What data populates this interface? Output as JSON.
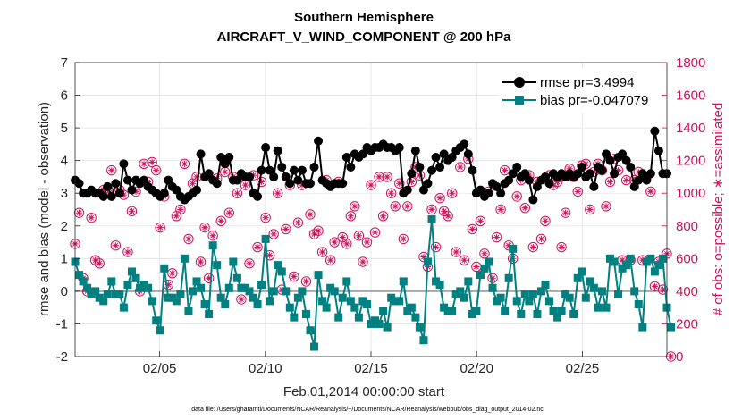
{
  "chart_data": {
    "type": "line",
    "title": "Southern Hemisphere",
    "subtitle": "AIRCRAFT_V_WIND_COMPONENT @ 200 hPa",
    "xlabel": "Feb.01,2014 00:00:00 start",
    "ylabel": "rmse and bias (model - observation)",
    "y2label": "# of obs: o=possible; ∗=assimilated",
    "footnote": "data file: /Users/gharamti/Documents/NCAR/Reanalysis/~/Documents/NCAR/Reanalysis/webpub/obs_diag_output_2014-02.nc",
    "x_ticks": [
      "02/05",
      "02/10",
      "02/15",
      "02/20",
      "02/25"
    ],
    "x_tick_values": [
      5,
      10,
      15,
      20,
      25
    ],
    "xlim": [
      1,
      29
    ],
    "ylim": [
      -2,
      7
    ],
    "y_ticks": [
      "-2",
      "-1",
      "0",
      "1",
      "2",
      "3",
      "4",
      "5",
      "6",
      "7"
    ],
    "y2lim": [
      0,
      1800
    ],
    "y2_ticks": [
      "0",
      "200",
      "400",
      "600",
      "800",
      "1000",
      "1200",
      "1400",
      "1600",
      "1800"
    ],
    "grid": true,
    "legend_position": "top-right",
    "colors": {
      "rmse": "#000000",
      "bias": "#008080",
      "obs": "#d0105a",
      "zero_line": "#a8a8a8"
    },
    "series": [
      {
        "name": "rmse pr=3.4994",
        "axis": "left",
        "values": [
          3.4,
          3.3,
          3.0,
          3.0,
          3.1,
          3.0,
          3.0,
          2.9,
          3.2,
          2.9,
          3.3,
          3.0,
          3.9,
          3.4,
          3.1,
          3.4,
          3.3,
          3.4,
          3.2,
          3.1,
          3.0,
          2.9,
          3.0,
          3.4,
          3.2,
          3.1,
          2.9,
          2.8,
          2.9,
          3.0,
          3.1,
          4.2,
          3.5,
          3.6,
          3.4,
          3.3,
          4.1,
          3.9,
          4.1,
          3.4,
          3.4,
          3.6,
          3.5,
          3.5,
          3.0,
          2.9,
          3.7,
          4.4,
          3.7,
          3.5,
          4.3,
          3.8,
          3.5,
          3.3,
          3.7,
          3.4,
          3.7,
          3.3,
          3.3,
          3.8,
          4.6,
          3.4,
          3.3,
          3.2,
          3.3,
          3.3,
          3.3,
          4.1,
          3.8,
          4.2,
          4.1,
          4.2,
          4.4,
          4.3,
          4.4,
          4.4,
          4.5,
          4.4,
          4.4,
          4.3,
          4.4,
          3.0,
          3.1,
          3.6,
          4.3,
          3.8,
          3.1,
          3.3,
          3.7,
          4.1,
          3.8,
          4.2,
          4.0,
          4.1,
          4.3,
          4.4,
          4.5,
          4.2,
          3.7,
          3.0,
          3.1,
          2.9,
          3.0,
          3.3,
          3.2,
          3.0,
          3.3,
          3.4,
          3.6,
          3.8,
          3.5,
          3.6,
          3.4,
          2.8,
          3.2,
          3.4,
          3.5,
          3.3,
          3.6,
          3.5,
          3.6,
          3.5,
          3.6,
          3.5,
          3.6,
          3.8,
          3.5,
          3.6,
          3.2,
          3.8,
          3.7,
          4.2,
          4.0,
          3.6,
          4.1,
          4.2,
          4.0,
          3.8,
          3.2,
          3.4,
          3.6,
          3.4,
          3.6,
          4.9,
          4.3,
          3.6,
          3.6
        ]
      },
      {
        "name": "bias pr=-0.047079",
        "axis": "left",
        "values": [
          0.9,
          0.5,
          0.3,
          0.1,
          -0.1,
          0.0,
          -0.2,
          -0.3,
          -0.1,
          0.3,
          -0.1,
          -0.1,
          -0.5,
          0.2,
          0.6,
          0.4,
          0.1,
          0.2,
          0.1,
          -0.3,
          -0.9,
          -1.2,
          0.7,
          -0.2,
          -0.2,
          -0.3,
          -0.1,
          1.0,
          -0.6,
          0.0,
          0.3,
          0.1,
          -0.4,
          -0.7,
          1.4,
          0.8,
          -0.2,
          -0.4,
          0.1,
          0.9,
          0.4,
          0.1,
          0.1,
          0.0,
          -0.2,
          -0.4,
          0.2,
          1.6,
          -0.3,
          0.0,
          0.8,
          0.6,
          0.0,
          -0.5,
          -0.8,
          -0.2,
          0.0,
          -0.7,
          -1.2,
          -1.7,
          0.5,
          -0.3,
          -0.5,
          0.1,
          0.0,
          -0.8,
          -0.2,
          0.3,
          -0.3,
          -0.5,
          -0.8,
          -0.3,
          -0.4,
          -1.0,
          -0.9,
          -1.0,
          -0.6,
          -1.1,
          -0.2,
          -0.3,
          -0.3,
          0.3,
          -0.6,
          -0.5,
          -0.8,
          -1.1,
          -1.5,
          0.9,
          2.2,
          0.3,
          0.2,
          -0.5,
          -0.6,
          -0.6,
          -0.1,
          0.0,
          -0.2,
          0.3,
          -0.7,
          -0.6,
          0.5,
          0.7,
          0.9,
          0.1,
          -0.3,
          -0.2,
          -0.6,
          0.4,
          1.3,
          -0.3,
          -0.7,
          -0.1,
          -0.3,
          -0.1,
          -0.7,
          0.0,
          0.2,
          -0.3,
          -0.6,
          -0.8,
          -0.6,
          -0.1,
          -0.2,
          -0.7,
          0.4,
          0.6,
          -0.2,
          0.3,
          0.1,
          -0.5,
          0.0,
          -0.5,
          1.0,
          0.9,
          -0.1,
          0.7,
          0.8,
          1.0,
          0.0,
          -0.4,
          -1.1,
          0.9,
          1.0,
          0.6,
          0.8,
          1.0,
          -0.5,
          -1.1
        ]
      },
      {
        "name": "obs possible",
        "axis": "right",
        "values": [
          690,
          880,
          480,
          400,
          850,
          590,
          570,
          1020,
          1030,
          1140,
          680,
          1020,
          990,
          640,
          890,
          1010,
          400,
          1180,
          1070,
          1190,
          1140,
          790,
          980,
          440,
          510,
          860,
          900,
          1180,
          720,
          1060,
          1100,
          580,
          790,
          480,
          740,
          1090,
          830,
          1130,
          880,
          1100,
          1000,
          350,
          1050,
          570,
          1110,
          670,
          1070,
          850,
          620,
          750,
          1000,
          410,
          780,
          1050,
          490,
          820,
          1050,
          460,
          870,
          750,
          770,
          640,
          1080,
          590,
          700,
          1070,
          730,
          690,
          860,
          920,
          740,
          580,
          700,
          1050,
          760,
          1100,
          860,
          1100,
          1000,
          920,
          1060,
          720,
          920,
          1070,
          1160,
          1110,
          610,
          550,
          900,
          670,
          970,
          890,
          860,
          1000,
          640,
          1160,
          590,
          1210,
          780,
          550,
          830,
          630,
          1010,
          480,
          730,
          900,
          1140,
          680,
          600,
          980,
          1080,
          910,
          1110,
          670,
          1070,
          720,
          830,
          1110,
          1050,
          1070,
          670,
          880,
          1150,
          1100,
          1010,
          1170,
          1180,
          900,
          1130,
          1180,
          1140,
          920,
          1070,
          1210,
          1140,
          590,
          1080,
          590,
          1080,
          1130,
          590,
          1100,
          1010,
          430,
          580,
          410,
          630,
          0
        ]
      },
      {
        "name": "obs assimilated",
        "axis": "right",
        "values": [
          690,
          880,
          480,
          400,
          850,
          590,
          570,
          1020,
          1030,
          1140,
          680,
          1020,
          990,
          640,
          890,
          1010,
          400,
          1180,
          1070,
          1190,
          1140,
          790,
          980,
          440,
          510,
          860,
          900,
          1180,
          720,
          1060,
          1100,
          580,
          790,
          480,
          740,
          1090,
          830,
          1130,
          880,
          1100,
          1000,
          350,
          1050,
          570,
          1110,
          670,
          1070,
          850,
          620,
          750,
          1000,
          410,
          780,
          1050,
          490,
          820,
          1050,
          460,
          870,
          750,
          770,
          640,
          1080,
          590,
          700,
          1070,
          730,
          690,
          860,
          920,
          740,
          580,
          700,
          1050,
          760,
          1100,
          860,
          1100,
          1000,
          920,
          1060,
          720,
          920,
          1070,
          1160,
          1110,
          610,
          550,
          900,
          670,
          970,
          890,
          860,
          1000,
          640,
          1160,
          590,
          1210,
          780,
          550,
          830,
          630,
          1010,
          480,
          730,
          900,
          1140,
          680,
          600,
          980,
          1080,
          910,
          1110,
          670,
          1070,
          720,
          830,
          1110,
          1050,
          1070,
          670,
          880,
          1150,
          1100,
          1010,
          1170,
          1180,
          900,
          1130,
          1180,
          1140,
          920,
          1070,
          1210,
          1140,
          590,
          1080,
          590,
          1080,
          1130,
          590,
          1100,
          1010,
          430,
          580,
          410,
          630,
          0
        ]
      }
    ]
  }
}
